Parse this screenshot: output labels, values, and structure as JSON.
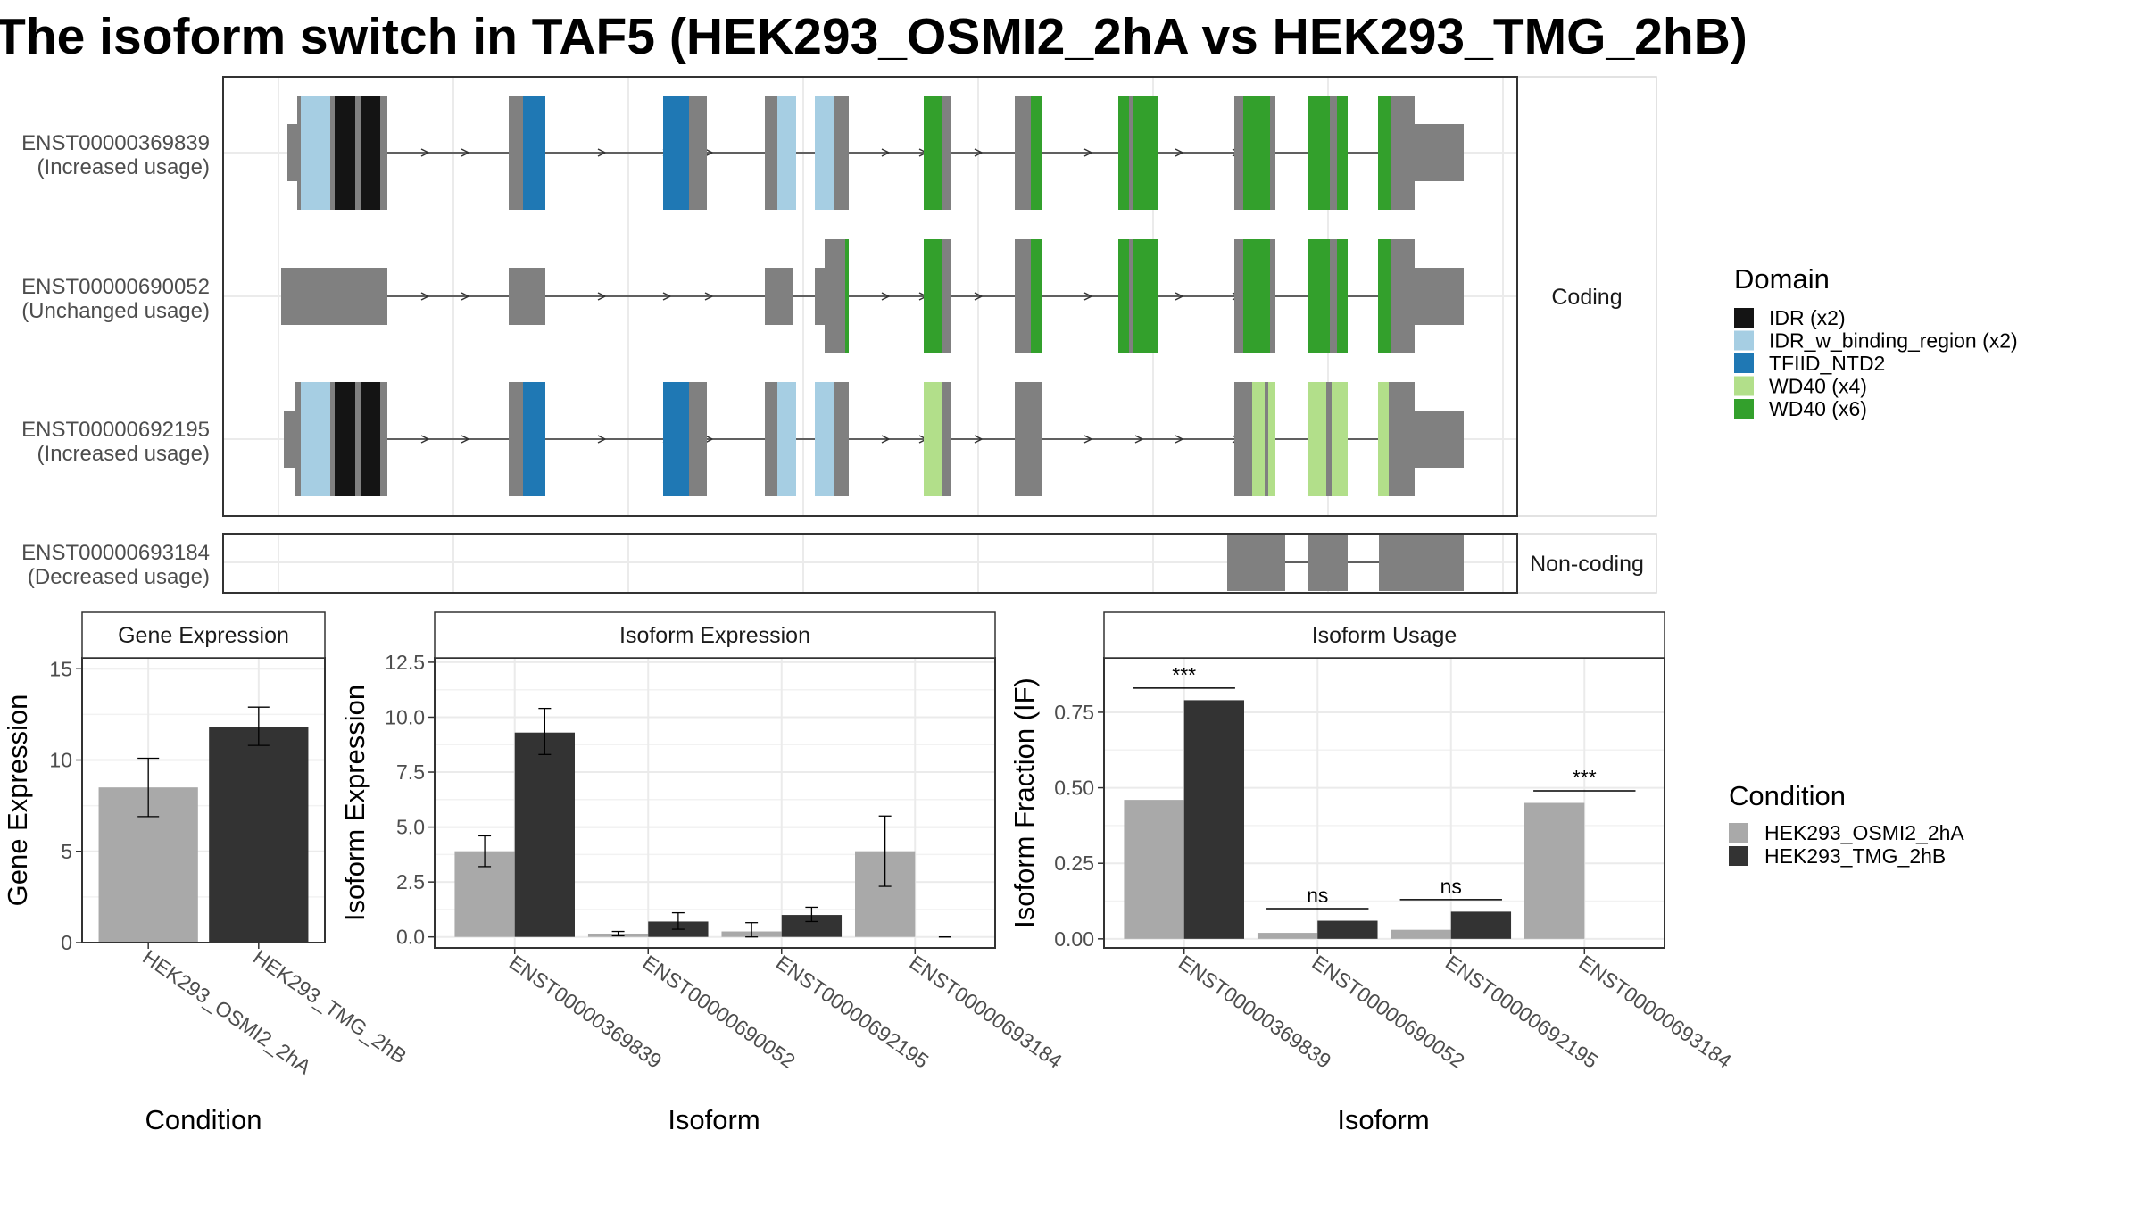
{
  "title": "The isoform switch in TAF5 (HEK293_OSMI2_2hA vs HEK293_TMG_2hB)",
  "structure": {
    "categories": [
      "Coding",
      "Non-coding"
    ],
    "isoforms": [
      {
        "id": "ENST00000369839",
        "note": "(Increased usage)",
        "category": "Coding"
      },
      {
        "id": "ENST00000690052",
        "note": "(Unchanged usage)",
        "category": "Coding"
      },
      {
        "id": "ENST00000692195",
        "note": "(Increased usage)",
        "category": "Coding"
      },
      {
        "id": "ENST00000693184",
        "note": "(Decreased usage)",
        "category": "Non-coding"
      }
    ]
  },
  "domain_legend": {
    "title": "Domain",
    "items": [
      {
        "label": "IDR (x2)",
        "color": "#141414"
      },
      {
        "label": "IDR_w_binding_region (x2)",
        "color": "#a6cee3"
      },
      {
        "label": "TFIID_NTD2",
        "color": "#1f78b4"
      },
      {
        "label": "WD40 (x4)",
        "color": "#b2df8a"
      },
      {
        "label": "WD40 (x6)",
        "color": "#33a02c"
      }
    ]
  },
  "condition_legend": {
    "title": "Condition",
    "items": [
      {
        "label": "HEK293_OSMI2_2hA",
        "color": "#a9a9a9"
      },
      {
        "label": "HEK293_TMG_2hB",
        "color": "#333333"
      }
    ]
  },
  "chart_data": [
    {
      "type": "bar",
      "title": "Gene Expression",
      "xlabel": "Condition",
      "ylabel": "Gene Expression",
      "ylim": [
        0,
        15.6
      ],
      "yticks": [
        "0",
        "5",
        "10",
        "15"
      ],
      "categories": [
        "HEK293_OSMI2_2hA",
        "HEK293_TMG_2hB"
      ],
      "values": [
        8.5,
        11.8
      ],
      "error_low": [
        6.9,
        10.8
      ],
      "error_high": [
        10.1,
        12.9
      ],
      "colors": [
        "#a9a9a9",
        "#333333"
      ]
    },
    {
      "type": "bar",
      "title": "Isoform Expression",
      "xlabel": "Isoform",
      "ylabel": "Isoform Expression",
      "ylim": [
        -0.5,
        12.7
      ],
      "yticks": [
        "0.0",
        "2.5",
        "5.0",
        "7.5",
        "10.0",
        "12.5"
      ],
      "categories": [
        "ENST00000369839",
        "ENST00000690052",
        "ENST00000692195",
        "ENST00000693184"
      ],
      "series": [
        {
          "name": "HEK293_OSMI2_2hA",
          "values": [
            3.9,
            0.15,
            0.25,
            3.9
          ],
          "error_low": [
            3.2,
            0.05,
            0.0,
            2.3
          ],
          "error_high": [
            4.6,
            0.25,
            0.65,
            5.5
          ]
        },
        {
          "name": "HEK293_TMG_2hB",
          "values": [
            9.3,
            0.7,
            1.0,
            0.0
          ],
          "error_low": [
            8.3,
            0.35,
            0.7,
            0.0
          ],
          "error_high": [
            10.4,
            1.1,
            1.35,
            0.0
          ]
        }
      ]
    },
    {
      "type": "bar",
      "title": "Isoform Usage",
      "xlabel": "Isoform",
      "ylabel": "Isoform Fraction (IF)",
      "ylim": [
        -0.03,
        0.93
      ],
      "yticks": [
        "0.00",
        "0.25",
        "0.50",
        "0.75"
      ],
      "categories": [
        "ENST00000369839",
        "ENST00000690052",
        "ENST00000692195",
        "ENST00000693184"
      ],
      "series": [
        {
          "name": "HEK293_OSMI2_2hA",
          "values": [
            0.46,
            0.02,
            0.03,
            0.45
          ]
        },
        {
          "name": "HEK293_TMG_2hB",
          "values": [
            0.79,
            0.06,
            0.09,
            0.0
          ]
        }
      ],
      "significance": [
        {
          "label": "***",
          "y": 0.83
        },
        {
          "label": "ns",
          "y": 0.1
        },
        {
          "label": "ns",
          "y": 0.13
        },
        {
          "label": "***",
          "y": 0.49
        }
      ]
    }
  ]
}
